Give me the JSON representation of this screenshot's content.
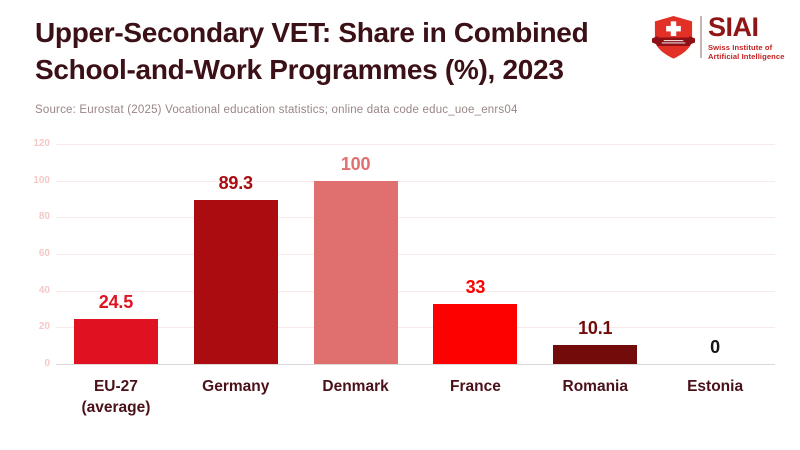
{
  "header": {
    "title_line1": "Upper-Secondary VET: Share in Combined",
    "title_line2": "School-and-Work Programmes (%), 2023",
    "source": "Source: Eurostat (2025) Vocational education statistics; online data code educ_uoe_enrs04"
  },
  "logo": {
    "acronym": "SIAI",
    "tagline_line1": "Swiss Institute of",
    "tagline_line2": "Artificial Intelligence"
  },
  "colors": {
    "title": "#3b1016",
    "source_text": "#9a8686",
    "x_labels": "#4b1119",
    "y_ticks": "#f6c8c8",
    "gridline": "#fae9e9",
    "axis_baseline": "#dcd8d8",
    "logo_acronym": "#8f1517",
    "logo_tagline": "#c32020",
    "shield_red": "#e23026",
    "shield_banner": "#8c1016"
  },
  "chart_data": {
    "type": "bar",
    "title": "Upper-Secondary VET: Share in Combined School-and-Work Programmes (%), 2023",
    "categories": [
      "EU-27\n(average)",
      "Germany",
      "Denmark",
      "France",
      "Romania",
      "Estonia"
    ],
    "values": [
      24.5,
      89.3,
      100,
      33,
      10.1,
      0
    ],
    "value_labels": [
      "24.5",
      "89.3",
      "100",
      "33",
      "10.1",
      "0"
    ],
    "bar_colors": [
      "#e01222",
      "#ab0c10",
      "#e06f70",
      "#fd0000",
      "#740b0b",
      null
    ],
    "label_colors": [
      "#e01222",
      "#ab0c10",
      "#e06f70",
      "#fd0000",
      "#740b0b",
      "#151515"
    ],
    "xlabel": "",
    "ylabel": "",
    "ylim": [
      0,
      120
    ],
    "yticks": [
      0,
      20,
      40,
      60,
      80,
      100,
      120
    ],
    "grid": true,
    "legend": false
  }
}
